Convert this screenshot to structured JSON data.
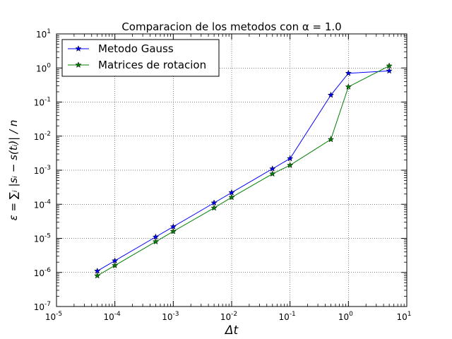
{
  "chart_data": {
    "type": "line",
    "title": "Comparacion de los metodos con α = 1.0",
    "xlabel": "Δt",
    "ylabel": "ε = ∑ᵢ |sᵢ − s(tᵢ)| / n",
    "xscale": "log",
    "yscale": "log",
    "xlim": [
      1e-05,
      10
    ],
    "ylim": [
      1e-07,
      10
    ],
    "grid": true,
    "legend_position": "upper-left",
    "x_ticks": [
      {
        "value": 1e-05,
        "base": "10",
        "exp": "-5"
      },
      {
        "value": 0.0001,
        "base": "10",
        "exp": "-4"
      },
      {
        "value": 0.001,
        "base": "10",
        "exp": "-3"
      },
      {
        "value": 0.01,
        "base": "10",
        "exp": "-2"
      },
      {
        "value": 0.1,
        "base": "10",
        "exp": "-1"
      },
      {
        "value": 1,
        "base": "10",
        "exp": "0"
      },
      {
        "value": 10,
        "base": "10",
        "exp": "1"
      }
    ],
    "y_ticks": [
      {
        "value": 1e-07,
        "base": "10",
        "exp": "-7"
      },
      {
        "value": 1e-06,
        "base": "10",
        "exp": "-6"
      },
      {
        "value": 1e-05,
        "base": "10",
        "exp": "-5"
      },
      {
        "value": 0.0001,
        "base": "10",
        "exp": "-4"
      },
      {
        "value": 0.001,
        "base": "10",
        "exp": "-3"
      },
      {
        "value": 0.01,
        "base": "10",
        "exp": "-2"
      },
      {
        "value": 0.1,
        "base": "10",
        "exp": "-1"
      },
      {
        "value": 1,
        "base": "10",
        "exp": "0"
      },
      {
        "value": 10,
        "base": "10",
        "exp": "1"
      }
    ],
    "x": [
      5e-05,
      0.0001,
      0.0005,
      0.001,
      0.005,
      0.01,
      0.05,
      0.1,
      0.5,
      1,
      5
    ],
    "series": [
      {
        "name": "Metodo Gauss",
        "color": "#0000ff",
        "marker": "star",
        "values": [
          1.1e-06,
          2.2e-06,
          1.1e-05,
          2.2e-05,
          0.00011,
          0.00022,
          0.0011,
          0.0022,
          0.16,
          0.7,
          0.82
        ]
      },
      {
        "name": "Matrices de rotacion",
        "color": "#008000",
        "marker": "star",
        "values": [
          8e-07,
          1.6e-06,
          8e-06,
          1.6e-05,
          7.8e-05,
          0.00016,
          0.00078,
          0.0014,
          0.008,
          0.28,
          1.15
        ]
      }
    ]
  }
}
